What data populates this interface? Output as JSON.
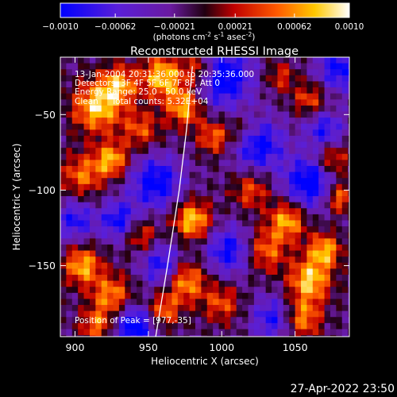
{
  "colorbar": {
    "ticks": [
      "-0.0010",
      "-0.00062",
      "-0.00021",
      "0.00021",
      "0.00062",
      "0.0010"
    ],
    "tick_values": [
      -0.001,
      -0.00062,
      -0.00021,
      0.00021,
      0.00062,
      0.001
    ],
    "range": [
      -0.001,
      0.001
    ],
    "unit_label": "(photons cm",
    "unit_exp1": "-2",
    "unit_s": " s",
    "unit_exp2": "-1",
    "unit_asec": " asec",
    "unit_exp3": "-2",
    "unit_close": ")"
  },
  "chart_data": {
    "type": "heatmap",
    "title": "Reconstructed RHESSI Image",
    "xlabel": "Heliocentric X (arcsec)",
    "ylabel": "Heliocentric Y (arcsec)",
    "xlim": [
      890,
      1087
    ],
    "ylim": [
      -197,
      -12
    ],
    "xticks": [
      900,
      950,
      1000,
      1050
    ],
    "yticks": [
      -50,
      -100,
      -150
    ],
    "colorscale_range": [
      -0.001,
      0.001
    ],
    "limb_curve": {
      "x": [
        955,
        963,
        971,
        976,
        980
      ],
      "y": [
        -197,
        -150,
        -100,
        -60,
        -18
      ]
    },
    "peak_position": [
      977,
      -35
    ],
    "hotspots": [
      {
        "x": 915,
        "y": -45,
        "amp": 0.001,
        "r": 12
      },
      {
        "x": 930,
        "y": -30,
        "amp": 0.0008,
        "r": 9
      },
      {
        "x": 905,
        "y": -90,
        "amp": 0.0007,
        "r": 10
      },
      {
        "x": 925,
        "y": -80,
        "amp": 0.0009,
        "r": 8
      },
      {
        "x": 945,
        "y": -60,
        "amp": 0.0006,
        "r": 9
      },
      {
        "x": 960,
        "y": -25,
        "amp": 0.001,
        "r": 10
      },
      {
        "x": 975,
        "y": -45,
        "amp": 0.0009,
        "r": 9
      },
      {
        "x": 985,
        "y": -20,
        "amp": 0.0008,
        "r": 8
      },
      {
        "x": 995,
        "y": -65,
        "amp": 0.0007,
        "r": 8
      },
      {
        "x": 980,
        "y": -120,
        "amp": 0.001,
        "r": 9
      },
      {
        "x": 975,
        "y": -160,
        "amp": 0.0009,
        "r": 10
      },
      {
        "x": 960,
        "y": -180,
        "amp": 0.0007,
        "r": 8
      },
      {
        "x": 1020,
        "y": -100,
        "amp": 0.0006,
        "r": 9
      },
      {
        "x": 1030,
        "y": -140,
        "amp": 0.0007,
        "r": 10
      },
      {
        "x": 1045,
        "y": -120,
        "amp": 0.0009,
        "r": 9
      },
      {
        "x": 1060,
        "y": -160,
        "amp": 0.001,
        "r": 10
      },
      {
        "x": 1070,
        "y": -140,
        "amp": 0.0009,
        "r": 8
      },
      {
        "x": 1055,
        "y": -185,
        "amp": 0.0008,
        "r": 9
      },
      {
        "x": 1075,
        "y": -80,
        "amp": 0.0007,
        "r": 8
      },
      {
        "x": 1060,
        "y": -40,
        "amp": 0.0006,
        "r": 8
      },
      {
        "x": 1040,
        "y": -25,
        "amp": 0.0005,
        "r": 7
      },
      {
        "x": 905,
        "y": -150,
        "amp": 0.0009,
        "r": 9
      },
      {
        "x": 925,
        "y": -170,
        "amp": 0.0008,
        "r": 10
      },
      {
        "x": 915,
        "y": -190,
        "amp": 0.0007,
        "r": 8
      },
      {
        "x": 945,
        "y": -130,
        "amp": 0.0006,
        "r": 8
      },
      {
        "x": 1000,
        "y": -175,
        "amp": 0.0006,
        "r": 9
      },
      {
        "x": 1015,
        "y": -60,
        "amp": 0.0004,
        "r": 8
      },
      {
        "x": 1080,
        "y": -105,
        "amp": 0.0008,
        "r": 7
      }
    ],
    "coldspots": [
      {
        "x": 1000,
        "y": -25,
        "amp": -0.001,
        "r": 14
      },
      {
        "x": 1025,
        "y": -70,
        "amp": -0.0009,
        "r": 12
      },
      {
        "x": 1060,
        "y": -95,
        "amp": -0.001,
        "r": 12
      },
      {
        "x": 1005,
        "y": -140,
        "amp": -0.0008,
        "r": 11
      },
      {
        "x": 955,
        "y": -95,
        "amp": -0.0009,
        "r": 12
      },
      {
        "x": 940,
        "y": -190,
        "amp": -0.001,
        "r": 10
      },
      {
        "x": 960,
        "y": -150,
        "amp": -0.0008,
        "r": 10
      },
      {
        "x": 900,
        "y": -120,
        "amp": -0.0007,
        "r": 9
      },
      {
        "x": 930,
        "y": -120,
        "amp": -0.0008,
        "r": 9
      },
      {
        "x": 1035,
        "y": -185,
        "amp": -0.0007,
        "r": 10
      },
      {
        "x": 1080,
        "y": -20,
        "amp": -0.0008,
        "r": 10
      },
      {
        "x": 1070,
        "y": -60,
        "amp": -0.0007,
        "r": 9
      }
    ]
  },
  "annotations": {
    "time_range": "13-Jan-2004 20:31:36.000 to 20:35:36.000",
    "detectors": "Detectors: 3F 4F 5F 6F 7F 8F, Att 0",
    "energy_range": "Energy Range: 25.0 - 50.0 keV",
    "clean": "Clean     Total counts: 5.32E+04",
    "peak": "Position of Peak = [977,-35]"
  },
  "footer": {
    "timestamp": "27-Apr-2022 23:50"
  }
}
